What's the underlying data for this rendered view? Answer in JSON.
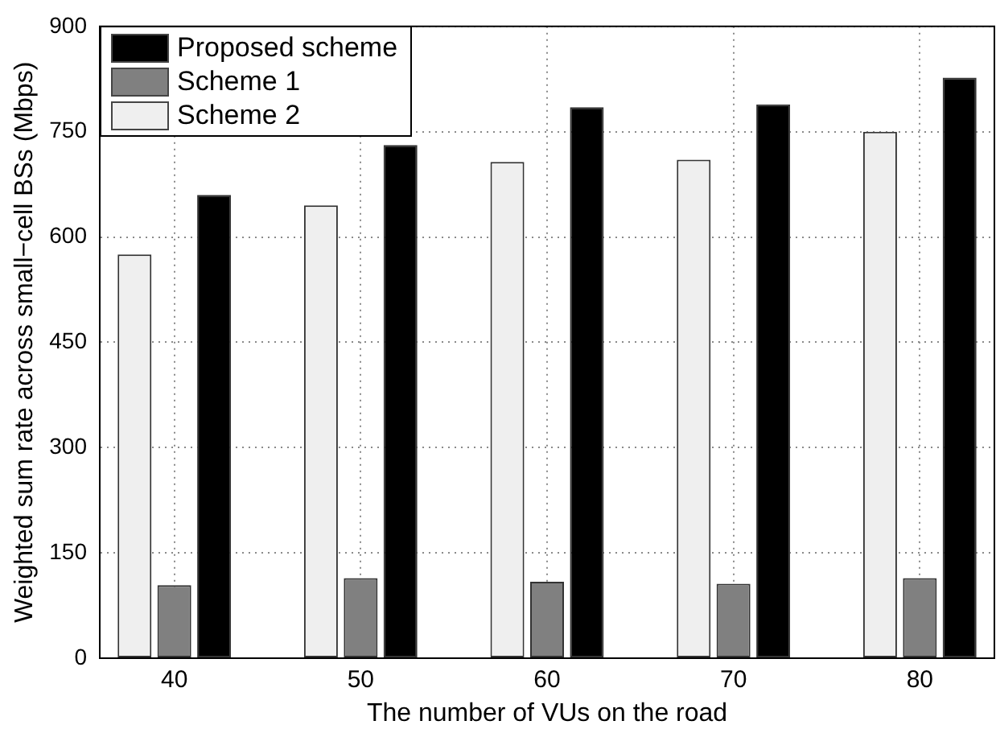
{
  "chart_data": {
    "type": "bar",
    "xlabel": "The number of VUs on the road",
    "ylabel": "Weighted sum rate across small−cell BSs (Mbps)",
    "x": [
      40,
      50,
      60,
      70,
      80
    ],
    "xlim": [
      36,
      84
    ],
    "xticks": [
      40,
      50,
      60,
      70,
      80
    ],
    "ylim": [
      0,
      900
    ],
    "yticks": [
      0,
      150,
      300,
      450,
      600,
      750,
      900
    ],
    "grid": true,
    "legend": "top left",
    "series": [
      {
        "name": "Scheme 2",
        "color": "#efefef",
        "values": [
          575,
          645,
          707,
          710,
          750
        ]
      },
      {
        "name": "Scheme 1",
        "color": "#808080",
        "values": [
          104,
          114,
          109,
          106,
          114
        ]
      },
      {
        "name": "Proposed scheme",
        "color": "#000000",
        "values": [
          660,
          731,
          785,
          789,
          827
        ]
      }
    ]
  }
}
